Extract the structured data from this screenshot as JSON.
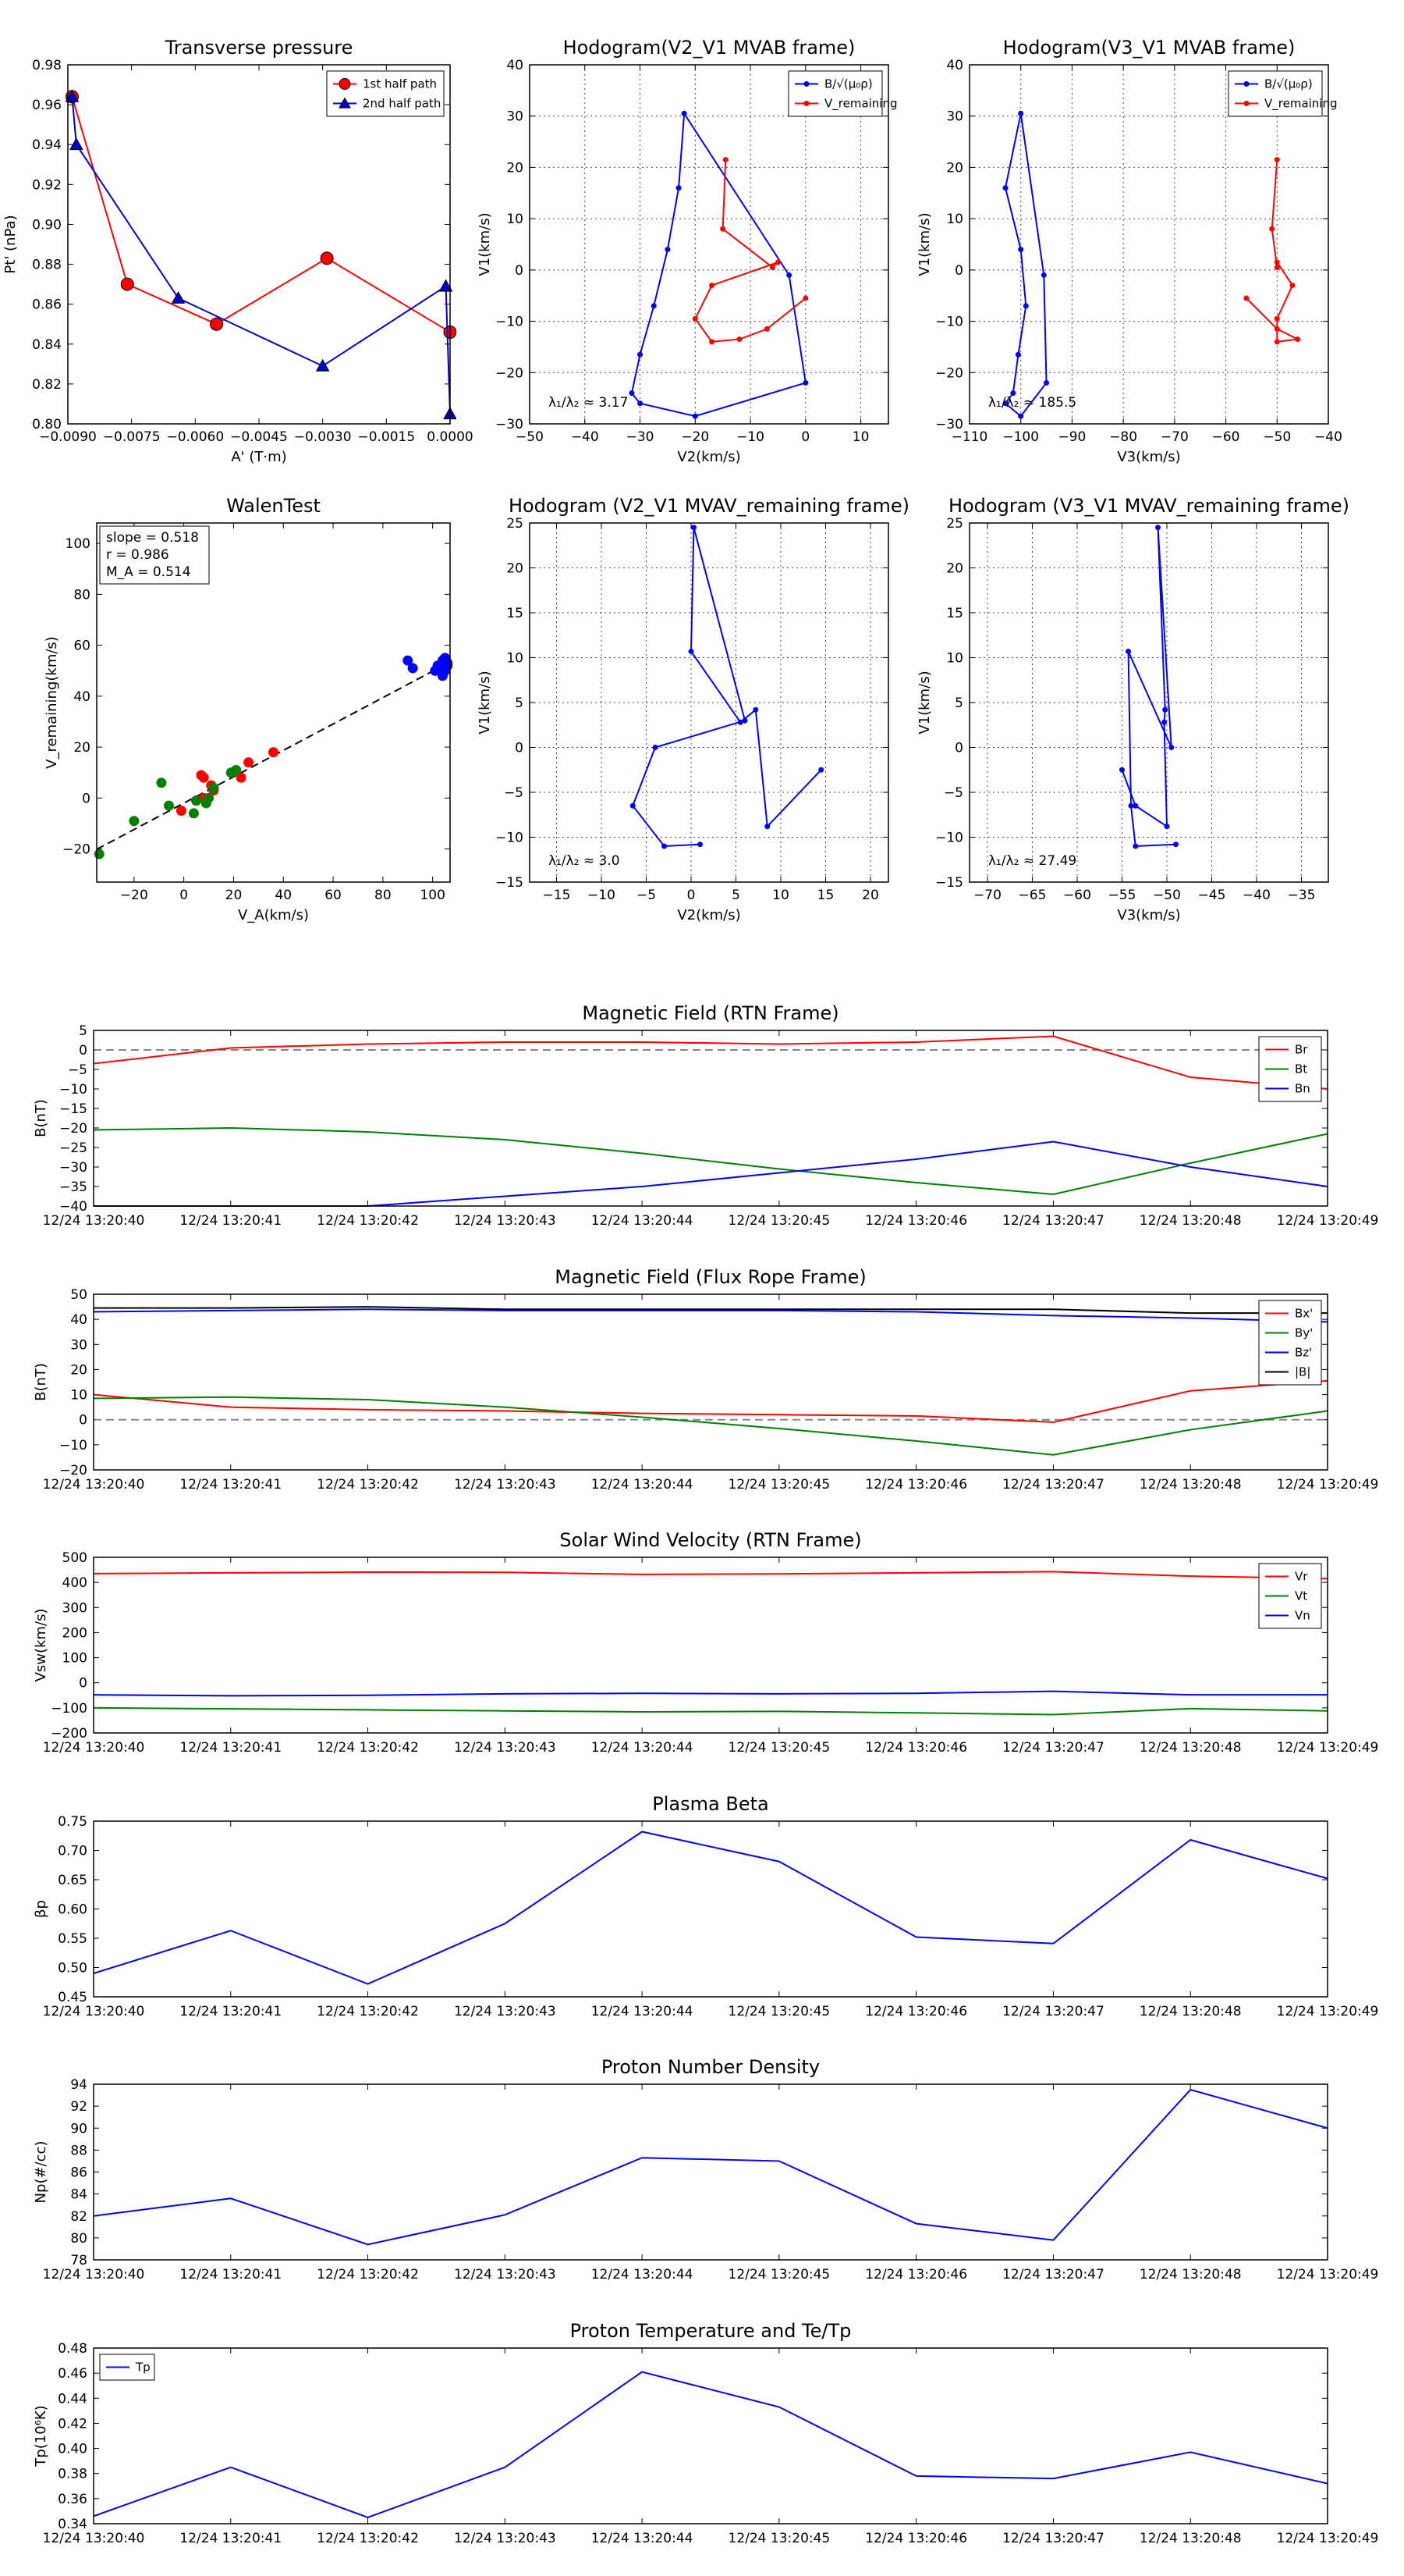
{
  "chart_data": [
    {
      "id": "pt_vs_a",
      "type": "line",
      "title": "Transverse pressure",
      "xlabel": "A' (T·m)",
      "ylabel": "Pt' (nPa)",
      "xlim": [
        -0.009,
        0.0
      ],
      "ylim": [
        0.8,
        0.98
      ],
      "xticks": [
        -0.009,
        -0.0075,
        -0.006,
        -0.0045,
        -0.003,
        -0.0015,
        0.0
      ],
      "xtick_labels": [
        "−0.0090",
        "−0.0075",
        "−0.0060",
        "−0.0045",
        "−0.0030",
        "−0.0015",
        "0.0000"
      ],
      "yticks": [
        0.8,
        0.82,
        0.84,
        0.86,
        0.88,
        0.9,
        0.92,
        0.94,
        0.96,
        0.98
      ],
      "ytick_labels": [
        "0.80",
        "0.82",
        "0.84",
        "0.86",
        "0.88",
        "0.90",
        "0.92",
        "0.94",
        "0.96",
        "0.98"
      ],
      "grid": false,
      "legend": "top-right",
      "series": [
        {
          "name": "1st half path",
          "color": "#ff0000",
          "marker": "circle",
          "x": [
            -0.0089,
            -0.0076,
            -0.0055,
            -0.0029,
            0.0
          ],
          "y": [
            0.964,
            0.87,
            0.85,
            0.883,
            0.846
          ]
        },
        {
          "name": "2nd half path",
          "color": "#0000cc",
          "marker": "triangle",
          "x": [
            -0.0089,
            -0.0088,
            -0.0064,
            -0.003,
            -0.0001,
            0.0
          ],
          "y": [
            0.964,
            0.94,
            0.863,
            0.829,
            0.869,
            0.805
          ]
        }
      ]
    },
    {
      "id": "hodo_v2_mvab",
      "type": "line",
      "title": "Hodogram(V2_V1 MVAB frame)",
      "xlabel": "V2(km/s)",
      "ylabel": "V1(km/s)",
      "xlim": [
        -50,
        15
      ],
      "ylim": [
        -30,
        40
      ],
      "xticks": [
        -50,
        -40,
        -30,
        -20,
        -10,
        0,
        10
      ],
      "yticks": [
        -30,
        -20,
        -10,
        0,
        10,
        20,
        30,
        40
      ],
      "grid": true,
      "legend": "top-right",
      "annotation": "λ₁/λ₂ ≈ 3.17",
      "series": [
        {
          "name": "B/√(μ₀ρ)",
          "color": "#0000ff",
          "x": [
            -22,
            -23,
            -25,
            -27.5,
            -30,
            -31.5,
            -30,
            -20,
            0,
            -3,
            -22
          ],
          "y": [
            30.5,
            16,
            4,
            -7,
            -16.5,
            -24,
            -26,
            -28.5,
            -22,
            -1,
            30.5
          ]
        },
        {
          "name": "V_remaining",
          "color": "#ff0000",
          "x": [
            -14.5,
            -15,
            -6,
            -5,
            -17,
            -20,
            -17,
            -12,
            -7,
            0
          ],
          "y": [
            21.5,
            8,
            0.5,
            1.5,
            -3,
            -9.5,
            -14,
            -13.5,
            -11.5,
            -5.5
          ]
        }
      ]
    },
    {
      "id": "hodo_v3_mvab",
      "type": "line",
      "title": "Hodogram(V3_V1 MVAB frame)",
      "xlabel": "V3(km/s)",
      "ylabel": "V1(km/s)",
      "xlim": [
        -110,
        -40
      ],
      "ylim": [
        -30,
        40
      ],
      "xticks": [
        -110,
        -100,
        -90,
        -80,
        -70,
        -60,
        -50,
        -40
      ],
      "yticks": [
        -30,
        -20,
        -10,
        0,
        10,
        20,
        30,
        40
      ],
      "grid": true,
      "legend": "top-right",
      "annotation": "λ₁/λ₂ ≈ 185.5",
      "series": [
        {
          "name": "B/√(μ₀ρ)",
          "color": "#0000ff",
          "x": [
            -100,
            -103,
            -100,
            -99,
            -100.5,
            -101.5,
            -103,
            -100,
            -95,
            -95.5,
            -100
          ],
          "y": [
            30.5,
            16,
            4,
            -7,
            -16.5,
            -24,
            -26,
            -28.5,
            -22,
            -1,
            30.5
          ]
        },
        {
          "name": "V_remaining",
          "color": "#ff0000",
          "x": [
            -50,
            -51,
            -50,
            -50,
            -47,
            -50,
            -50,
            -46,
            -50,
            -56
          ],
          "y": [
            21.5,
            8,
            0.5,
            1.5,
            -3,
            -9.5,
            -14,
            -13.5,
            -11.5,
            -5.5
          ]
        }
      ]
    },
    {
      "id": "walen",
      "type": "scatter",
      "title": "WalenTest",
      "xlabel": "V_A(km/s)",
      "ylabel": "V_remaining(km/s)",
      "xlim": [
        -35,
        107
      ],
      "ylim": [
        -33,
        108
      ],
      "xticks": [
        -20,
        0,
        20,
        40,
        60,
        80,
        100
      ],
      "yticks": [
        -20,
        0,
        20,
        40,
        60,
        80,
        100
      ],
      "grid": false,
      "annotation_lines": [
        "slope = 0.518",
        "r = 0.986",
        "M_A = 0.514"
      ],
      "fit": {
        "slope": 0.518,
        "intercept": -2,
        "color": "#000000",
        "style": "dashed"
      },
      "series": [
        {
          "name": "red",
          "color": "#ff0000",
          "x": [
            7,
            36,
            26,
            23,
            11,
            5,
            8,
            12,
            -1,
            5,
            8
          ],
          "y": [
            9,
            18,
            14,
            8,
            5,
            -1,
            8,
            3,
            -5,
            -1,
            0
          ]
        },
        {
          "name": "green",
          "color": "#008000",
          "x": [
            -34,
            -20,
            -9,
            -6,
            4,
            9,
            12,
            19,
            21,
            10,
            5
          ],
          "y": [
            -22,
            -9,
            6,
            -3,
            -6,
            -2,
            4,
            10,
            11,
            0,
            -1
          ]
        },
        {
          "name": "blue",
          "color": "#0000ff",
          "x": [
            90,
            92,
            102,
            104,
            105,
            106,
            104,
            103,
            105,
            101,
            106
          ],
          "y": [
            54,
            51,
            52,
            54,
            50,
            53,
            48,
            51,
            55,
            50,
            52
          ]
        }
      ]
    },
    {
      "id": "hodo_v2_mvav",
      "type": "line",
      "title": "Hodogram (V2_V1 MVAV_remaining frame)",
      "xlabel": "V2(km/s)",
      "ylabel": "V1(km/s)",
      "xlim": [
        -18,
        22
      ],
      "ylim": [
        -15,
        25
      ],
      "xticks": [
        -15,
        -10,
        -5,
        0,
        5,
        10,
        15,
        20
      ],
      "yticks": [
        -15,
        -10,
        -5,
        0,
        5,
        10,
        15,
        20,
        25
      ],
      "grid": true,
      "annotation": "λ₁/λ₂ ≈ 3.0",
      "series": [
        {
          "name": "V",
          "color": "#0000ff",
          "x": [
            14.5,
            8.5,
            7.2,
            5.5,
            0,
            0.3,
            6,
            -4,
            -6.5,
            -3,
            1
          ],
          "y": [
            -2.5,
            -8.8,
            4.2,
            2.8,
            10.7,
            24.5,
            3,
            0,
            -6.5,
            -11,
            -10.8
          ]
        }
      ]
    },
    {
      "id": "hodo_v3_mvav",
      "type": "line",
      "title": "Hodogram (V3_V1 MVAV_remaining frame)",
      "xlabel": "V3(km/s)",
      "ylabel": "V1(km/s)",
      "xlim": [
        -72,
        -32
      ],
      "ylim": [
        -15,
        25
      ],
      "xticks": [
        -70,
        -65,
        -60,
        -55,
        -50,
        -45,
        -40,
        -35
      ],
      "yticks": [
        -15,
        -10,
        -5,
        0,
        5,
        10,
        15,
        20,
        25
      ],
      "grid": true,
      "annotation": "λ₁/λ₂ ≈ 27.49",
      "series": [
        {
          "name": "V",
          "color": "#0000ff",
          "x": [
            -55,
            -53.5,
            -50,
            -50.3,
            -50.2,
            -51,
            -49.5,
            -54.3,
            -54,
            -53.5,
            -49
          ],
          "y": [
            -2.5,
            -6.5,
            -8.8,
            2.8,
            4.2,
            24.5,
            0,
            10.7,
            -6.5,
            -11,
            -10.8
          ]
        }
      ]
    },
    {
      "id": "b_rtn",
      "type": "line",
      "title": "Magnetic Field (RTN Frame)",
      "ylabel": "B(nT)",
      "categories": [
        "12/24 13:20:40",
        "12/24 13:20:41",
        "12/24 13:20:42",
        "12/24 13:20:43",
        "12/24 13:20:44",
        "12/24 13:20:45",
        "12/24 13:20:46",
        "12/24 13:20:47",
        "12/24 13:20:48",
        "12/24 13:20:49"
      ],
      "ylim": [
        -40,
        5
      ],
      "yticks": [
        -40,
        -35,
        -30,
        -25,
        -20,
        -15,
        -10,
        -5,
        0,
        5
      ],
      "zero_line": true,
      "legend": "top-right",
      "series": [
        {
          "name": "Br",
          "color": "#ff0000",
          "values": [
            -3.5,
            0.5,
            1.5,
            2,
            2,
            1.5,
            2,
            3.5,
            -7,
            -10
          ]
        },
        {
          "name": "Bt",
          "color": "#008000",
          "values": [
            -20.5,
            -20,
            -21,
            -23,
            -26.5,
            -30.5,
            -34,
            -37,
            -29,
            -21.5
          ]
        },
        {
          "name": "Bn",
          "color": "#0000ff",
          "values": [
            -40,
            -40,
            -40,
            -37.5,
            -35,
            -31.5,
            -28,
            -23.5,
            -30,
            -35
          ]
        }
      ]
    },
    {
      "id": "b_fr",
      "type": "line",
      "title": "Magnetic Field (Flux Rope Frame)",
      "ylabel": "B(nT)",
      "categories": [
        "12/24 13:20:40",
        "12/24 13:20:41",
        "12/24 13:20:42",
        "12/24 13:20:43",
        "12/24 13:20:44",
        "12/24 13:20:45",
        "12/24 13:20:46",
        "12/24 13:20:47",
        "12/24 13:20:48",
        "12/24 13:20:49"
      ],
      "ylim": [
        -20,
        50
      ],
      "yticks": [
        -20,
        -10,
        0,
        10,
        20,
        30,
        40,
        50
      ],
      "zero_line": true,
      "legend": "top-right",
      "series": [
        {
          "name": "Bx'",
          "color": "#ff0000",
          "values": [
            10,
            5,
            4,
            3.5,
            2.5,
            2,
            1.5,
            -1,
            11.5,
            15.5
          ]
        },
        {
          "name": "By'",
          "color": "#008000",
          "values": [
            8.5,
            9,
            8,
            5,
            1,
            -3.5,
            -8.5,
            -14,
            -4,
            3.5
          ]
        },
        {
          "name": "Bz'",
          "color": "#0000ff",
          "values": [
            43,
            43.5,
            44,
            43.5,
            43.5,
            43.5,
            43,
            41.5,
            40.5,
            39
          ]
        },
        {
          "name": "|B|",
          "color": "#000000",
          "values": [
            44.5,
            44.5,
            45,
            44,
            44,
            44,
            44,
            44,
            42.5,
            42.5
          ]
        }
      ]
    },
    {
      "id": "v_rtn",
      "type": "line",
      "title": "Solar Wind Velocity (RTN Frame)",
      "ylabel": "Vsw(km/s)",
      "categories": [
        "12/24 13:20:40",
        "12/24 13:20:41",
        "12/24 13:20:42",
        "12/24 13:20:43",
        "12/24 13:20:44",
        "12/24 13:20:45",
        "12/24 13:20:46",
        "12/24 13:20:47",
        "12/24 13:20:48",
        "12/24 13:20:49"
      ],
      "ylim": [
        -200,
        500
      ],
      "yticks": [
        -200,
        -100,
        0,
        100,
        200,
        300,
        400,
        500
      ],
      "legend": "top-right",
      "series": [
        {
          "name": "Vr",
          "color": "#ff0000",
          "values": [
            435,
            438,
            441,
            440,
            432,
            434,
            438,
            443,
            425,
            415
          ]
        },
        {
          "name": "Vt",
          "color": "#008000",
          "values": [
            -100,
            -104,
            -108,
            -112,
            -116,
            -114,
            -120,
            -127,
            -103,
            -112
          ]
        },
        {
          "name": "Vn",
          "color": "#0000ff",
          "values": [
            -48,
            -52,
            -50,
            -44,
            -42,
            -44,
            -42,
            -34,
            -48,
            -48
          ]
        }
      ]
    },
    {
      "id": "beta",
      "type": "line",
      "title": "Plasma Beta",
      "ylabel": "βp",
      "categories": [
        "12/24 13:20:40",
        "12/24 13:20:41",
        "12/24 13:20:42",
        "12/24 13:20:43",
        "12/24 13:20:44",
        "12/24 13:20:45",
        "12/24 13:20:46",
        "12/24 13:20:47",
        "12/24 13:20:48",
        "12/24 13:20:49"
      ],
      "ylim": [
        0.45,
        0.75
      ],
      "yticks": [
        0.45,
        0.5,
        0.55,
        0.6,
        0.65,
        0.7,
        0.75
      ],
      "ytick_labels": [
        "0.45",
        "0.50",
        "0.55",
        "0.60",
        "0.65",
        "0.70",
        "0.75"
      ],
      "series": [
        {
          "name": "beta",
          "color": "#0000ff",
          "values": [
            0.49,
            0.563,
            0.472,
            0.575,
            0.732,
            0.681,
            0.552,
            0.541,
            0.718,
            0.652
          ]
        }
      ]
    },
    {
      "id": "np",
      "type": "line",
      "title": "Proton Number Density",
      "ylabel": "Np(#/cc)",
      "categories": [
        "12/24 13:20:40",
        "12/24 13:20:41",
        "12/24 13:20:42",
        "12/24 13:20:43",
        "12/24 13:20:44",
        "12/24 13:20:45",
        "12/24 13:20:46",
        "12/24 13:20:47",
        "12/24 13:20:48",
        "12/24 13:20:49"
      ],
      "ylim": [
        78,
        94
      ],
      "yticks": [
        78,
        80,
        82,
        84,
        86,
        88,
        90,
        92,
        94
      ],
      "series": [
        {
          "name": "Np",
          "color": "#0000ff",
          "values": [
            82,
            83.6,
            79.4,
            82.1,
            87.3,
            87,
            81.3,
            79.8,
            93.5,
            90
          ]
        }
      ]
    },
    {
      "id": "tp",
      "type": "line",
      "title": "Proton Temperature and Te/Tp",
      "ylabel": "Tp(10⁶K)",
      "categories": [
        "12/24 13:20:40",
        "12/24 13:20:41",
        "12/24 13:20:42",
        "12/24 13:20:43",
        "12/24 13:20:44",
        "12/24 13:20:45",
        "12/24 13:20:46",
        "12/24 13:20:47",
        "12/24 13:20:48",
        "12/24 13:20:49"
      ],
      "ylim": [
        0.34,
        0.48
      ],
      "yticks": [
        0.34,
        0.36,
        0.38,
        0.4,
        0.42,
        0.44,
        0.46,
        0.48
      ],
      "ytick_labels": [
        "0.34",
        "0.36",
        "0.38",
        "0.40",
        "0.42",
        "0.44",
        "0.46",
        "0.48"
      ],
      "legend": "top-left",
      "series": [
        {
          "name": "Tp",
          "color": "#0000ff",
          "values": [
            0.346,
            0.385,
            0.345,
            0.385,
            0.461,
            0.433,
            0.378,
            0.376,
            0.397,
            0.372
          ]
        }
      ]
    }
  ]
}
